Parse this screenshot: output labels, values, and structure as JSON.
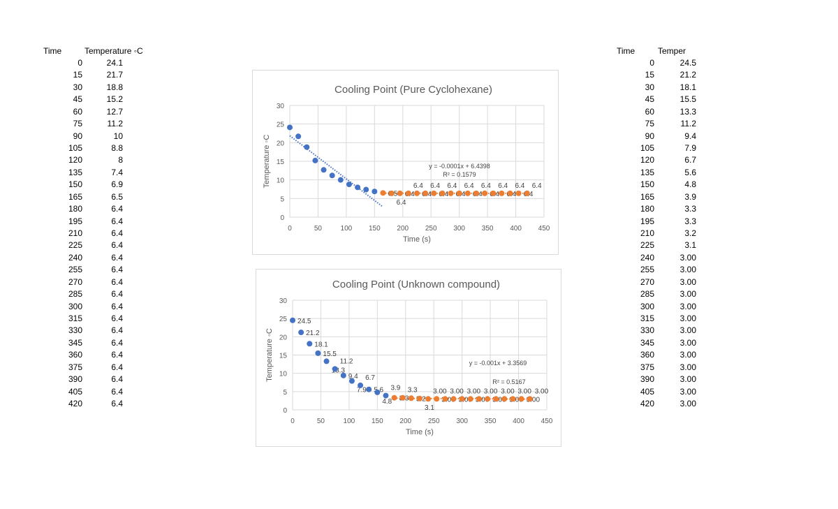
{
  "left_table": {
    "headers": [
      "Time",
      "Temperature ◦C"
    ],
    "rows": [
      [
        "0",
        "24.1"
      ],
      [
        "15",
        "21.7"
      ],
      [
        "30",
        "18.8"
      ],
      [
        "45",
        "15.2"
      ],
      [
        "60",
        "12.7"
      ],
      [
        "75",
        "11.2"
      ],
      [
        "90",
        "10"
      ],
      [
        "105",
        "8.8"
      ],
      [
        "120",
        "8"
      ],
      [
        "135",
        "7.4"
      ],
      [
        "150",
        "6.9"
      ],
      [
        "165",
        "6.5"
      ],
      [
        "180",
        "6.4"
      ],
      [
        "195",
        "6.4"
      ],
      [
        "210",
        "6.4"
      ],
      [
        "225",
        "6.4"
      ],
      [
        "240",
        "6.4"
      ],
      [
        "255",
        "6.4"
      ],
      [
        "270",
        "6.4"
      ],
      [
        "285",
        "6.4"
      ],
      [
        "300",
        "6.4"
      ],
      [
        "315",
        "6.4"
      ],
      [
        "330",
        "6.4"
      ],
      [
        "345",
        "6.4"
      ],
      [
        "360",
        "6.4"
      ],
      [
        "375",
        "6.4"
      ],
      [
        "390",
        "6.4"
      ],
      [
        "405",
        "6.4"
      ],
      [
        "420",
        "6.4"
      ]
    ]
  },
  "right_table": {
    "headers": [
      "Time",
      "Temper"
    ],
    "rows": [
      [
        "0",
        "24.5"
      ],
      [
        "15",
        "21.2"
      ],
      [
        "30",
        "18.1"
      ],
      [
        "45",
        "15.5"
      ],
      [
        "60",
        "13.3"
      ],
      [
        "75",
        "11.2"
      ],
      [
        "90",
        "9.4"
      ],
      [
        "105",
        "7.9"
      ],
      [
        "120",
        "6.7"
      ],
      [
        "135",
        "5.6"
      ],
      [
        "150",
        "4.8"
      ],
      [
        "165",
        "3.9"
      ],
      [
        "180",
        "3.3"
      ],
      [
        "195",
        "3.3"
      ],
      [
        "210",
        "3.2"
      ],
      [
        "225",
        "3.1"
      ],
      [
        "240",
        "3.00"
      ],
      [
        "255",
        "3.00"
      ],
      [
        "270",
        "3.00"
      ],
      [
        "285",
        "3.00"
      ],
      [
        "300",
        "3.00"
      ],
      [
        "315",
        "3.00"
      ],
      [
        "330",
        "3.00"
      ],
      [
        "345",
        "3.00"
      ],
      [
        "360",
        "3.00"
      ],
      [
        "375",
        "3.00"
      ],
      [
        "390",
        "3.00"
      ],
      [
        "405",
        "3.00"
      ],
      [
        "420",
        "3.00"
      ]
    ]
  },
  "chart_data": [
    {
      "type": "scatter",
      "title": "Cooling Point  (Pure Cyclohexane)",
      "xlabel": "Time (s)",
      "ylabel": "Temperature ◦C",
      "xlim": [
        0,
        450
      ],
      "ylim": [
        0,
        30
      ],
      "xticks": [
        0,
        50,
        100,
        150,
        200,
        250,
        300,
        350,
        400,
        450
      ],
      "yticks": [
        0,
        5,
        10,
        15,
        20,
        25,
        30
      ],
      "grid": true,
      "legend": "none",
      "series": [
        {
          "color": "#4472c4",
          "show_labels": false,
          "trendline": "linear",
          "x": [
            0,
            15,
            30,
            45,
            60,
            75,
            90,
            105,
            120,
            135,
            150
          ],
          "y": [
            24.1,
            21.7,
            18.8,
            15.2,
            12.7,
            11.2,
            10,
            8.8,
            8,
            7.4,
            6.9
          ]
        },
        {
          "color": "#ed7d31",
          "show_labels": true,
          "trendline": "linear",
          "x": [
            165,
            180,
            195,
            210,
            225,
            240,
            255,
            270,
            285,
            300,
            315,
            330,
            345,
            360,
            375,
            390,
            405,
            420
          ],
          "y": [
            6.5,
            6.4,
            6.4,
            6.4,
            6.4,
            6.4,
            6.4,
            6.4,
            6.4,
            6.4,
            6.4,
            6.4,
            6.4,
            6.4,
            6.4,
            6.4,
            6.4,
            6.4
          ],
          "labels": [
            "6.5",
            "6.4",
            "6.4",
            "6.4",
            "6.4",
            "6.4",
            "6.4",
            "6.4",
            "6.4",
            "6.4",
            "6.4",
            "6.4",
            "6.4",
            "6.4",
            "6.4",
            "6.4",
            "6.4",
            "6.4"
          ]
        }
      ],
      "trend_equation": "y = -0.0001x + 6.4398",
      "trend_r2": "R² = 0.1579"
    },
    {
      "type": "scatter",
      "title": "Cooling Point (Unknown compound)",
      "xlabel": "Time (s)",
      "ylabel": "Temperature ◦C",
      "xlim": [
        0,
        450
      ],
      "ylim": [
        0,
        30
      ],
      "xticks": [
        0,
        50,
        100,
        150,
        200,
        250,
        300,
        350,
        400,
        450
      ],
      "yticks": [
        0,
        5,
        10,
        15,
        20,
        25,
        30
      ],
      "grid": true,
      "legend": "none",
      "series": [
        {
          "color": "#4472c4",
          "show_labels": true,
          "trendline": "none",
          "x": [
            0,
            15,
            30,
            45,
            60,
            75,
            90,
            105,
            120,
            135,
            150,
            165
          ],
          "y": [
            24.5,
            21.2,
            18.1,
            15.5,
            13.3,
            11.2,
            9.4,
            7.9,
            6.7,
            5.6,
            4.8,
            3.9
          ],
          "labels": [
            "24.5",
            "21.2",
            "18.1",
            "15.5",
            "13.3",
            "11.2",
            "9.4",
            "7.9",
            "6.7",
            "5.6",
            "4.8",
            "3.9"
          ]
        },
        {
          "color": "#ed7d31",
          "show_labels": true,
          "trendline": "linear",
          "x": [
            180,
            195,
            210,
            225,
            240,
            255,
            270,
            285,
            300,
            315,
            330,
            345,
            360,
            375,
            390,
            405,
            420
          ],
          "y": [
            3.3,
            3.3,
            3.2,
            3.1,
            3,
            3,
            3,
            3,
            3,
            3,
            3,
            3,
            3,
            3,
            3,
            3,
            3
          ],
          "labels": [
            "3.3",
            "3.3",
            "3.2",
            "3.1",
            "3.00",
            "3.00",
            "3.00",
            "3.00",
            "3.00",
            "3.00",
            "3.00",
            "3.00",
            "3.00",
            "3.00",
            "3.00",
            "3.00",
            "3.00"
          ]
        }
      ],
      "trend_equation": "y = -0.001x + 3.3569",
      "trend_r2": "R² = 0.5167"
    }
  ]
}
